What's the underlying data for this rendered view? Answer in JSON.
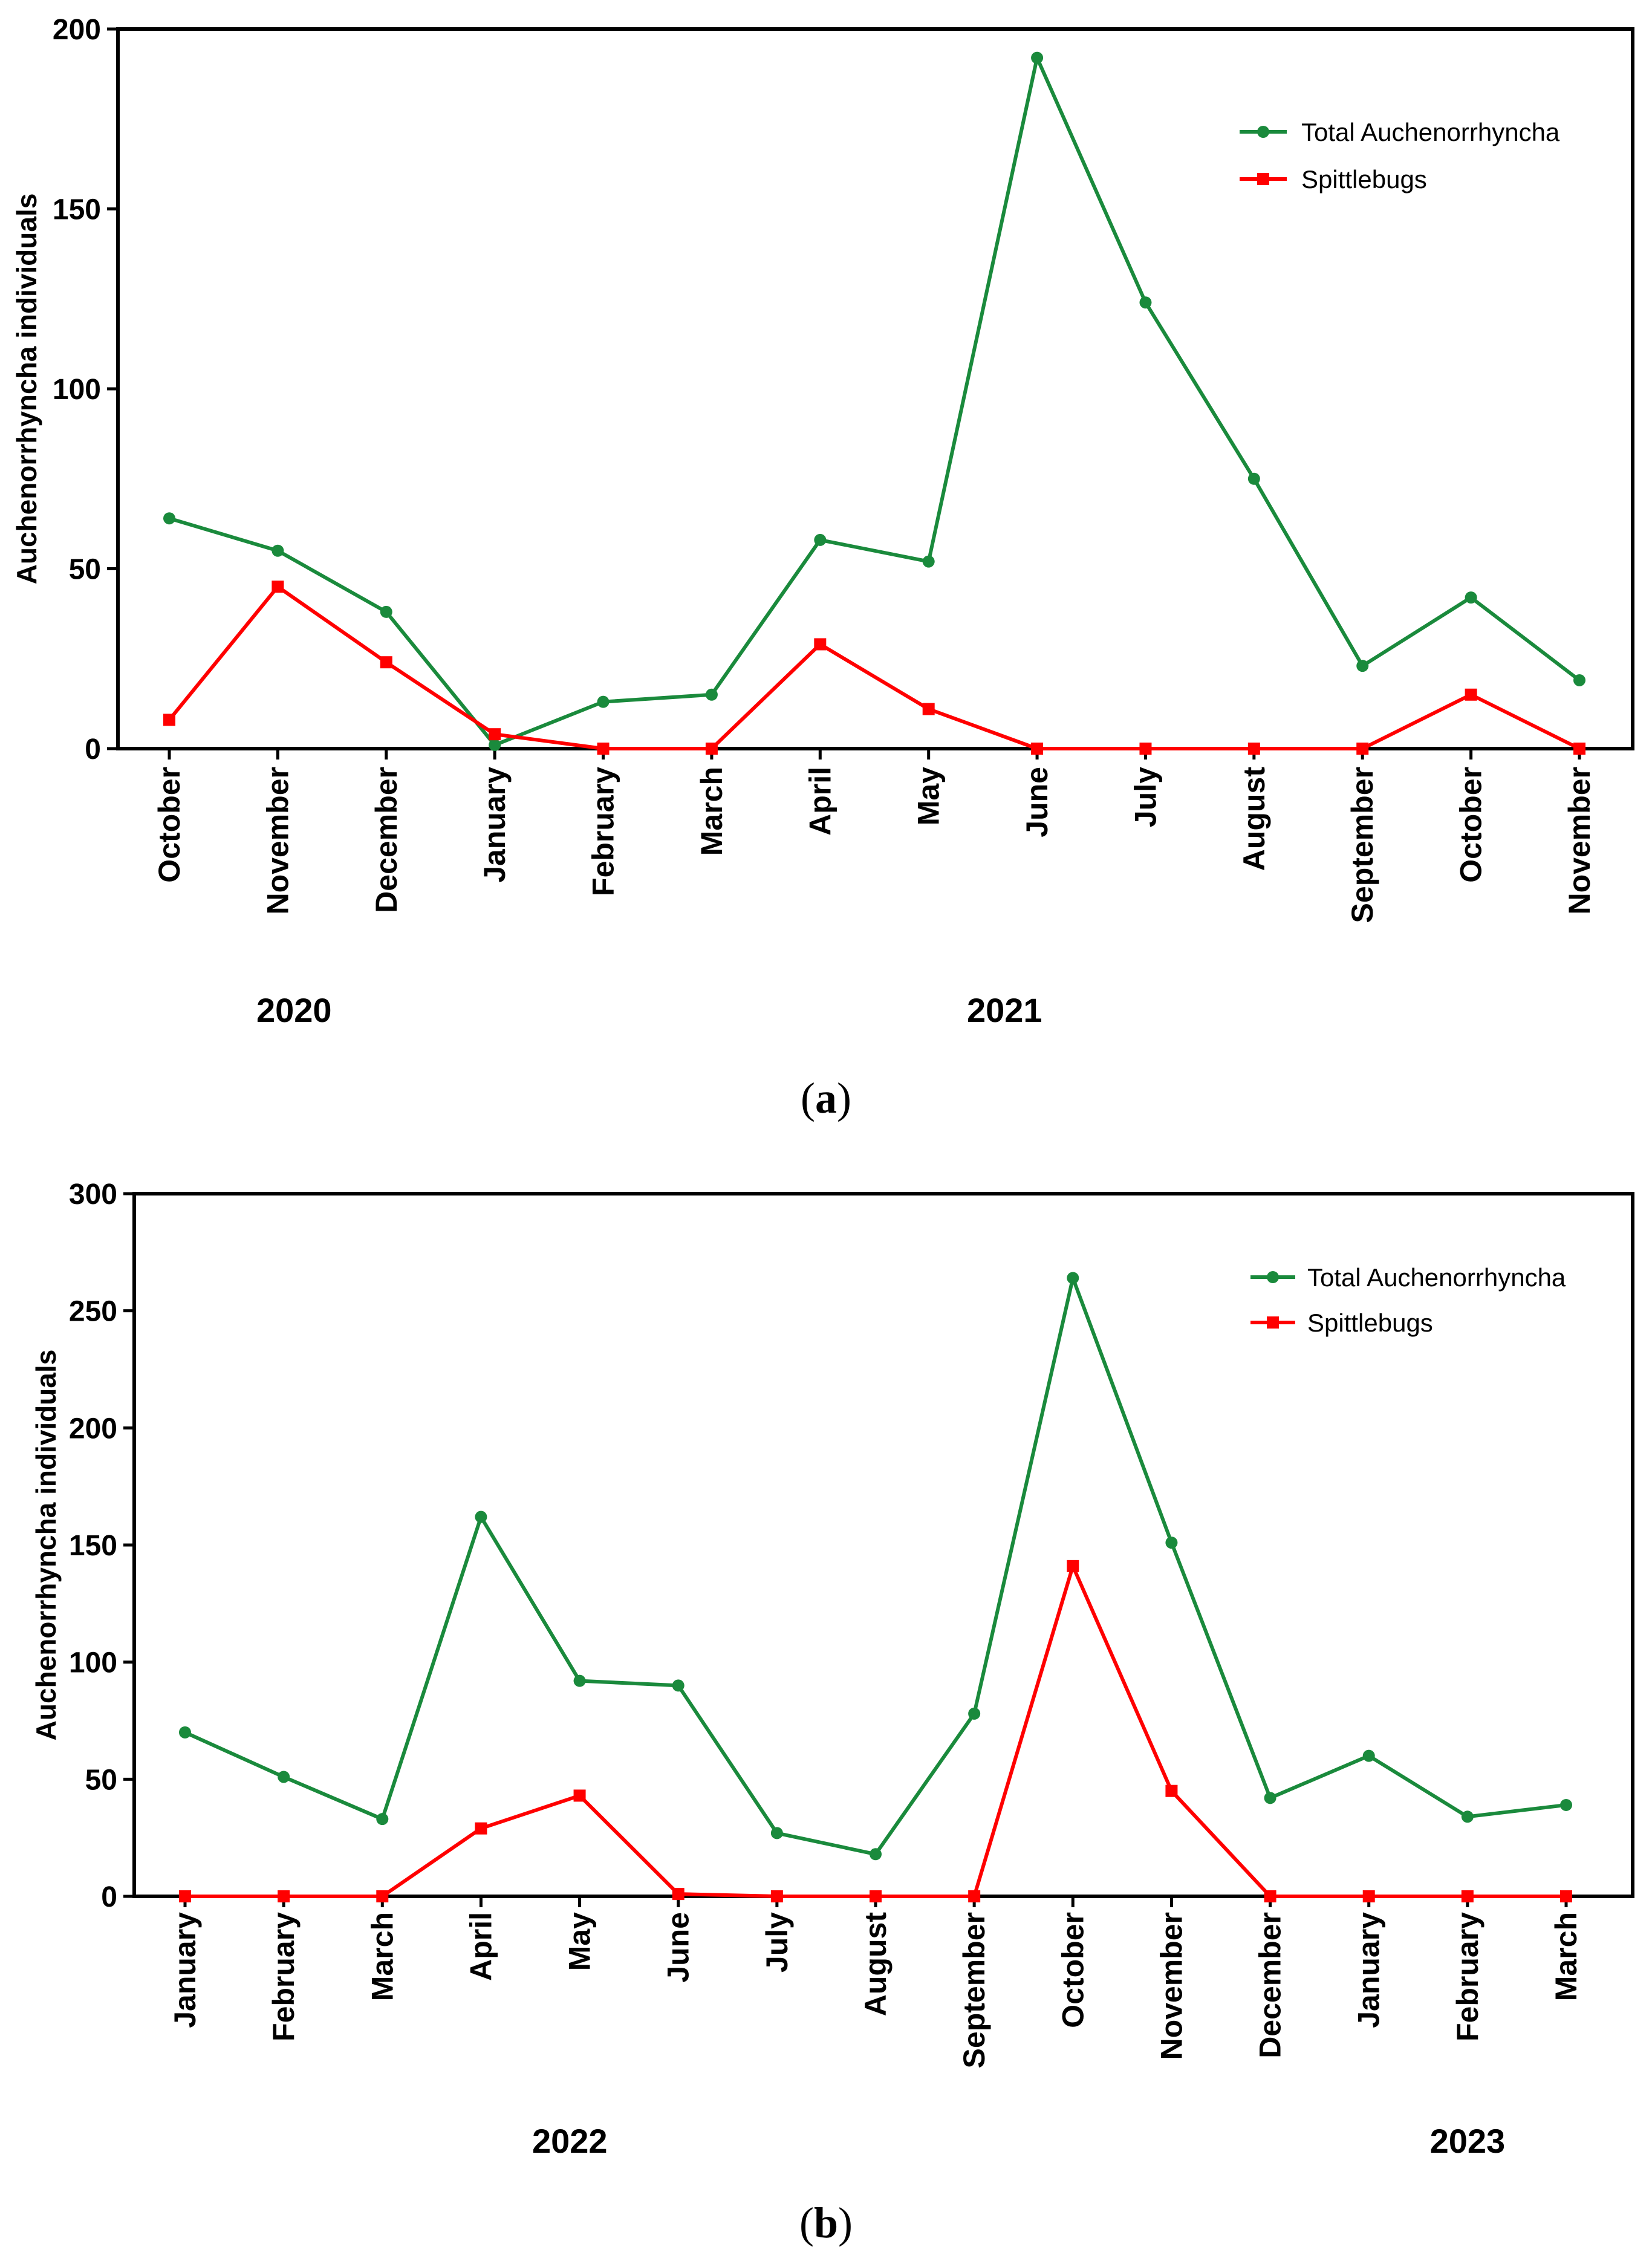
{
  "chart_data": [
    {
      "type": "line",
      "panel": "a",
      "ylabel": "Auchenorrhyncha individuals",
      "ylim": [
        0,
        200
      ],
      "yticks": [
        0,
        50,
        100,
        150,
        200
      ],
      "categories": [
        "October",
        "November",
        "December",
        "January",
        "February",
        "March",
        "April",
        "May",
        "June",
        "July",
        "August",
        "September",
        "October",
        "November"
      ],
      "years": [
        {
          "label": "2020",
          "center_index": 1.15
        },
        {
          "label": "2021",
          "center_index": 7.7
        }
      ],
      "series": [
        {
          "name": "Total Auchenorrhyncha",
          "color": "#1a8a3c",
          "marker": "circle",
          "values": [
            64,
            55,
            38,
            1,
            13,
            15,
            58,
            52,
            192,
            124,
            75,
            23,
            42,
            19
          ]
        },
        {
          "name": "Spittlebugs",
          "color": "#ff0000",
          "marker": "square",
          "values": [
            8,
            45,
            24,
            4,
            0,
            0,
            29,
            11,
            0,
            0,
            0,
            0,
            15,
            0
          ]
        }
      ],
      "legend_position": "top-right"
    },
    {
      "type": "line",
      "panel": "b",
      "ylabel": "Auchenorrhyncha individuals",
      "ylim": [
        0,
        300
      ],
      "yticks": [
        0,
        50,
        100,
        150,
        200,
        250,
        300
      ],
      "categories": [
        "January",
        "February",
        "March",
        "April",
        "May",
        "June",
        "July",
        "August",
        "September",
        "October",
        "November",
        "December",
        "January",
        "February",
        "March"
      ],
      "years": [
        {
          "label": "2022",
          "center_index": 3.9
        },
        {
          "label": "2023",
          "center_index": 13.0
        }
      ],
      "series": [
        {
          "name": "Total Auchenorrhyncha",
          "color": "#1a8a3c",
          "marker": "circle",
          "values": [
            70,
            51,
            33,
            162,
            92,
            90,
            27,
            18,
            78,
            264,
            151,
            42,
            60,
            34,
            39
          ]
        },
        {
          "name": "Spittlebugs",
          "color": "#ff0000",
          "marker": "square",
          "values": [
            0,
            0,
            0,
            29,
            43,
            1,
            0,
            0,
            0,
            141,
            45,
            0,
            0,
            0,
            0
          ]
        }
      ],
      "legend_position": "top-right"
    }
  ],
  "captions": [
    {
      "open": "(",
      "letter": "a",
      "close": ")"
    },
    {
      "open": "(",
      "letter": "b",
      "close": ")"
    }
  ]
}
